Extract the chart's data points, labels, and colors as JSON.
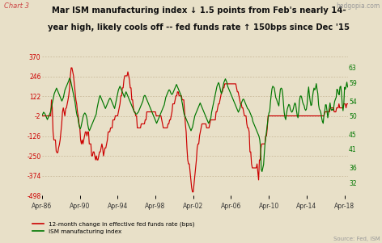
{
  "title_line1": "Mar ISM manufacturing index ↓ 1.5 points from Feb's nearly 14-",
  "title_line2": "year high, likely cools off -- fed funds rate ↑ 150bps since Dec '15",
  "chart_label": "Chart 3",
  "source": "Source: Fed, ISM",
  "watermark": "hedgopia.com",
  "left_yticks": [
    370,
    246,
    122,
    -2,
    -126,
    -250,
    -374,
    -498
  ],
  "right_yticks": [
    63,
    59,
    54,
    50,
    45,
    41,
    36,
    32
  ],
  "left_ylim": [
    -498,
    405
  ],
  "right_ylim": [
    28.5,
    67.5
  ],
  "xtick_labels": [
    "Apr-86",
    "Apr-90",
    "Apr-94",
    "Apr-98",
    "Apr-02",
    "Apr-06",
    "Apr-10",
    "Apr-14",
    "Apr-18"
  ],
  "bg_color": "#e8e0c8",
  "grid_color": "#c8b898",
  "red_color": "#cc0000",
  "green_color": "#007700",
  "title_color": "#111111",
  "chart_label_color": "#cc4444",
  "watermark_color": "#999999",
  "actual_ffr": [
    6.5,
    6.5,
    7.5,
    8.0,
    8.5,
    9.0,
    9.5,
    9.8,
    9.8,
    9.5,
    9.0,
    8.5,
    7.5,
    7.0,
    6.5,
    6.5,
    7.0,
    7.5,
    7.3,
    7.5,
    7.5,
    7.5,
    7.2,
    7.0,
    6.5,
    6.5,
    6.75,
    7.0,
    7.25,
    7.5,
    7.75,
    8.0,
    8.25,
    8.5,
    8.5,
    8.75,
    9.0,
    9.5,
    9.75,
    9.75,
    9.75,
    9.5,
    9.25,
    9.0,
    9.0,
    8.75,
    8.5,
    8.25,
    8.25,
    8.0,
    8.0,
    8.25,
    8.0,
    8.0,
    8.0,
    8.0,
    8.0,
    7.5,
    7.5,
    7.25,
    6.5,
    6.25,
    6.25,
    5.75,
    5.5,
    5.75,
    5.75,
    5.5,
    5.25,
    5.0,
    4.75,
    4.5,
    4.0,
    4.0,
    4.0,
    3.75,
    3.75,
    3.75,
    3.25,
    3.25,
    3.25,
    3.0,
    3.0,
    3.0,
    3.0,
    3.0,
    3.0,
    3.0,
    3.0,
    3.0,
    3.0,
    3.0,
    3.0,
    3.0,
    3.0,
    3.0,
    3.0,
    3.25,
    3.5,
    3.75,
    4.25,
    4.25,
    4.75,
    4.75,
    5.25,
    5.5,
    5.5,
    5.5,
    5.5,
    6.0,
    6.0,
    6.0,
    6.0,
    6.0,
    5.75,
    5.75,
    5.75,
    5.75,
    5.75,
    5.5,
    5.5,
    5.25,
    5.25,
    5.25,
    5.25,
    5.25,
    5.25,
    5.25,
    5.25,
    5.25,
    5.25,
    5.25,
    5.25,
    5.5,
    5.5,
    5.5,
    5.5,
    5.5,
    5.5,
    5.5,
    5.5,
    5.5,
    5.5,
    5.5,
    5.5,
    5.5,
    5.5,
    5.5,
    5.5,
    5.5,
    5.5,
    5.5,
    5.25,
    5.0,
    4.75,
    4.75,
    4.75,
    4.75,
    4.75,
    4.75,
    5.0,
    5.0,
    5.25,
    5.25,
    5.25,
    5.25,
    5.5,
    5.5,
    5.5,
    5.75,
    6.0,
    6.0,
    6.5,
    6.5,
    6.5,
    6.5,
    6.5,
    6.5,
    6.5,
    6.5,
    6.5,
    6.0,
    5.5,
    5.0,
    4.5,
    3.75,
    3.5,
    3.5,
    3.0,
    2.5,
    2.0,
    1.75,
    1.75,
    1.75,
    1.75,
    1.75,
    1.75,
    1.75,
    1.75,
    1.75,
    1.75,
    1.5,
    1.25,
    1.25,
    1.25,
    1.25,
    1.25,
    1.25,
    1.25,
    1.0,
    1.0,
    1.0,
    1.0,
    1.0,
    1.0,
    1.0,
    1.0,
    1.0,
    1.0,
    1.0,
    1.0,
    1.25,
    1.25,
    1.5,
    1.75,
    1.75,
    2.0,
    2.25,
    2.5,
    2.5,
    2.75,
    2.75,
    3.0,
    3.25,
    3.25,
    3.5,
    3.75,
    3.75,
    4.0,
    4.25,
    4.5,
    4.5,
    4.75,
    4.75,
    5.0,
    5.25,
    5.25,
    5.25,
    5.25,
    5.25,
    5.25,
    5.25,
    5.25,
    5.25,
    5.25,
    5.25,
    5.25,
    5.25,
    5.25,
    5.25,
    4.75,
    4.5,
    4.5,
    4.25,
    3.0,
    3.0,
    2.25,
    2.0,
    2.0,
    2.0,
    2.0,
    2.0,
    1.5,
    1.5,
    1.0,
    0.25,
    0.25,
    0.25,
    0.25,
    0.25,
    0.25,
    0.25,
    0.25,
    0.25,
    0.25,
    0.25,
    0.25,
    0.25,
    0.25,
    0.25,
    0.25,
    0.25,
    0.25,
    0.25,
    0.25,
    0.25,
    0.25,
    0.25,
    0.25,
    0.25,
    0.25,
    0.25,
    0.25,
    0.25,
    0.25,
    0.25,
    0.25,
    0.25,
    0.25,
    0.25,
    0.25,
    0.25,
    0.25,
    0.25,
    0.25,
    0.25,
    0.25,
    0.25,
    0.25,
    0.25,
    0.25,
    0.25,
    0.25,
    0.25,
    0.25,
    0.25,
    0.25,
    0.25,
    0.25,
    0.25,
    0.25,
    0.25,
    0.25,
    0.25,
    0.25,
    0.25,
    0.25,
    0.25,
    0.25,
    0.25,
    0.25,
    0.25,
    0.25,
    0.25,
    0.25,
    0.25,
    0.25,
    0.25,
    0.25,
    0.25,
    0.25,
    0.25,
    0.25,
    0.25,
    0.25,
    0.25,
    0.25,
    0.25,
    0.25,
    0.5,
    0.5,
    0.5,
    0.5,
    0.5,
    0.5,
    0.5,
    0.75,
    0.75,
    0.75,
    0.75,
    0.75,
    0.75,
    0.75,
    0.75,
    1.0,
    1.0,
    1.0,
    1.25,
    1.25,
    1.25,
    1.25,
    1.25,
    1.25,
    1.5,
    1.5,
    1.5,
    1.5,
    1.75,
    1.75
  ],
  "ism_data": [
    50.2,
    50.5,
    51.0,
    50.8,
    50.5,
    50.0,
    49.5,
    49.0,
    49.5,
    50.0,
    50.5,
    51.0,
    52.0,
    53.0,
    54.0,
    55.0,
    56.0,
    56.5,
    57.0,
    57.5,
    57.0,
    56.5,
    56.0,
    55.5,
    55.0,
    54.5,
    54.0,
    54.5,
    55.0,
    56.0,
    57.0,
    57.5,
    58.0,
    58.5,
    59.0,
    59.5,
    60.2,
    59.8,
    59.0,
    58.0,
    57.0,
    56.0,
    55.0,
    54.0,
    52.5,
    51.0,
    50.0,
    49.5,
    48.0,
    47.0,
    46.5,
    47.0,
    48.0,
    49.0,
    50.0,
    50.5,
    50.8,
    50.5,
    50.0,
    49.0,
    47.5,
    46.5,
    46.0,
    46.5,
    47.0,
    47.5,
    48.0,
    48.5,
    49.0,
    49.5,
    50.0,
    50.5,
    52.0,
    53.0,
    54.0,
    55.0,
    55.5,
    55.0,
    54.5,
    54.0,
    53.5,
    53.0,
    52.5,
    52.0,
    52.5,
    53.0,
    53.5,
    54.0,
    54.5,
    54.8,
    54.5,
    54.0,
    53.5,
    53.0,
    52.5,
    52.0,
    53.0,
    54.0,
    55.0,
    56.0,
    57.0,
    57.5,
    58.0,
    57.5,
    57.0,
    56.5,
    56.0,
    55.5,
    55.0,
    56.0,
    56.5,
    56.0,
    55.5,
    55.0,
    54.5,
    54.0,
    53.5,
    53.0,
    52.5,
    52.0,
    51.5,
    51.0,
    50.8,
    50.5,
    50.5,
    50.8,
    51.0,
    51.5,
    52.0,
    52.5,
    53.0,
    53.5,
    54.0,
    55.0,
    55.5,
    55.5,
    55.0,
    54.5,
    54.0,
    53.5,
    53.0,
    52.5,
    52.0,
    51.5,
    51.0,
    50.5,
    50.0,
    49.5,
    49.0,
    48.5,
    48.0,
    48.5,
    49.0,
    49.5,
    50.0,
    50.5,
    51.0,
    51.5,
    52.0,
    52.5,
    53.0,
    54.0,
    55.0,
    55.5,
    56.0,
    56.5,
    57.0,
    57.0,
    56.5,
    56.0,
    55.8,
    56.0,
    56.5,
    57.0,
    57.5,
    58.0,
    58.5,
    58.0,
    57.5,
    57.0,
    56.5,
    56.0,
    55.5,
    54.0,
    53.0,
    51.5,
    50.5,
    50.0,
    49.5,
    49.0,
    48.5,
    48.0,
    47.5,
    47.0,
    46.5,
    46.0,
    46.5,
    47.0,
    48.0,
    49.0,
    50.0,
    50.5,
    51.0,
    51.5,
    52.0,
    52.5,
    53.0,
    53.5,
    53.0,
    52.5,
    52.0,
    51.5,
    51.0,
    50.5,
    50.0,
    49.5,
    49.0,
    48.5,
    48.0,
    48.5,
    49.0,
    49.5,
    51.0,
    52.0,
    53.0,
    54.0,
    55.0,
    56.0,
    57.0,
    58.0,
    58.5,
    59.0,
    58.5,
    57.5,
    56.5,
    56.0,
    57.0,
    58.0,
    59.0,
    59.5,
    60.0,
    59.5,
    59.0,
    58.0,
    57.5,
    57.0,
    56.5,
    56.0,
    55.5,
    55.0,
    54.5,
    54.0,
    53.5,
    53.0,
    52.5,
    52.0,
    51.5,
    51.0,
    51.5,
    52.0,
    53.0,
    53.5,
    54.0,
    54.5,
    54.5,
    54.0,
    53.5,
    53.0,
    52.5,
    52.0,
    51.8,
    51.5,
    51.0,
    50.5,
    50.0,
    49.5,
    48.5,
    48.0,
    47.5,
    47.0,
    46.5,
    46.0,
    45.5,
    45.0,
    44.5,
    43.5,
    41.5,
    35.5,
    35.0,
    36.0,
    36.9,
    40.1,
    42.8,
    44.5,
    46.0,
    47.9,
    49.5,
    50.8,
    51.2,
    53.7,
    55.7,
    57.3,
    58.0,
    57.8,
    57.5,
    56.2,
    54.9,
    54.5,
    53.8,
    53.2,
    52.7,
    55.3,
    57.2,
    57.5,
    57.3,
    56.0,
    53.5,
    50.9,
    49.6,
    49.0,
    50.6,
    51.8,
    52.5,
    53.1,
    52.9,
    51.8,
    51.3,
    51.0,
    51.3,
    52.0,
    52.9,
    53.5,
    53.1,
    51.5,
    50.2,
    49.5,
    51.3,
    54.1,
    55.3,
    55.4,
    54.9,
    53.8,
    53.2,
    52.8,
    51.9,
    51.5,
    51.8,
    53.2,
    56.0,
    57.8,
    55.5,
    54.0,
    52.8,
    53.0,
    55.0,
    56.5,
    57.5,
    57.0,
    57.5,
    58.7,
    57.2,
    56.0,
    53.0,
    51.8,
    51.5,
    50.8,
    49.5,
    48.5,
    48.0,
    50.1,
    51.2,
    53.0,
    53.0,
    51.4,
    49.5,
    50.8,
    52.0,
    53.5,
    52.0,
    51.5,
    51.8,
    51.5,
    52.6,
    53.9,
    54.5,
    55.0,
    57.2,
    57.0,
    56.0,
    55.7,
    57.8,
    58.0,
    56.2,
    53.0,
    51.4,
    53.2,
    57.7,
    57.2,
    58.0,
    59.1,
    57.8
  ]
}
